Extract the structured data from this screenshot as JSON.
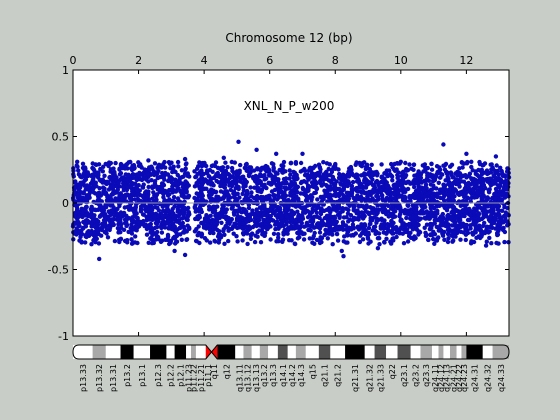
{
  "chart_data": {
    "type": "scatter",
    "title": "Chromosome 12 (bp)",
    "annotation": "XNL_N_P_w200",
    "x_tick_labels": [
      "0",
      "2",
      "4",
      "6",
      "8",
      "10",
      "12"
    ],
    "y_tick_labels": [
      "1",
      "0.5",
      "0",
      "-0.5",
      "-1"
    ],
    "x_ticks": [
      0,
      2,
      4,
      6,
      8,
      10,
      12
    ],
    "y_ticks": [
      1,
      0.5,
      0,
      -0.5,
      -1
    ],
    "xlim": [
      0,
      13.3
    ],
    "ylim": [
      -1,
      1
    ],
    "centromere_gap": [
      3.55,
      3.7
    ],
    "zero_line": true,
    "colors": {
      "figure_bg": "#c8cdc8",
      "plot_bg": "#ffffff",
      "points": "#0a0ab8",
      "zero_line": "#9a9aa8",
      "centromere": "#ff0000"
    },
    "series": [
      {
        "band": [
          -0.22,
          0.24
        ],
        "outliers": [
          {
            "x": 0.8,
            "y": -0.42
          },
          {
            "x": 1.3,
            "y": 0.3
          },
          {
            "x": 3.1,
            "y": -0.36
          },
          {
            "x": 3.42,
            "y": 0.33
          },
          {
            "x": 3.42,
            "y": -0.39
          },
          {
            "x": 3.95,
            "y": 0.3
          },
          {
            "x": 4.6,
            "y": 0.34
          },
          {
            "x": 5.05,
            "y": 0.46
          },
          {
            "x": 5.6,
            "y": 0.4
          },
          {
            "x": 6.2,
            "y": 0.37
          },
          {
            "x": 7.0,
            "y": 0.37
          },
          {
            "x": 8.2,
            "y": -0.36
          },
          {
            "x": 8.25,
            "y": -0.4
          },
          {
            "x": 10.0,
            "y": 0.31
          },
          {
            "x": 11.3,
            "y": 0.44
          },
          {
            "x": 12.0,
            "y": 0.37
          },
          {
            "x": 12.15,
            "y": 0.31
          },
          {
            "x": 12.9,
            "y": 0.35
          },
          {
            "x": 12.6,
            "y": -0.32
          },
          {
            "x": 2.3,
            "y": 0.32
          },
          {
            "x": 9.3,
            "y": -0.34
          }
        ]
      }
    ],
    "ideogram_bands": [
      {
        "name": "p13.33",
        "end": 0.6,
        "stain": "white"
      },
      {
        "name": "p13.32",
        "end": 1.0,
        "stain": "gray"
      },
      {
        "name": "p13.31",
        "end": 1.45,
        "stain": "white"
      },
      {
        "name": "p13.2",
        "end": 1.85,
        "stain": "black"
      },
      {
        "name": "p13.1",
        "end": 2.35,
        "stain": "white"
      },
      {
        "name": "p12.3",
        "end": 2.85,
        "stain": "black"
      },
      {
        "name": "p12.2",
        "end": 3.1,
        "stain": "white"
      },
      {
        "name": "p12.1",
        "end": 3.45,
        "stain": "black"
      },
      {
        "name": "p11.23",
        "end": 3.6,
        "stain": "white"
      },
      {
        "name": "p11.22",
        "end": 3.75,
        "stain": "gray"
      },
      {
        "name": "p11.21",
        "end": 4.05,
        "stain": "white"
      },
      {
        "name": "p11.1",
        "end": 4.2,
        "stain": "centromere"
      },
      {
        "name": "q11",
        "end": 4.4,
        "stain": "centromere"
      },
      {
        "name": "q12",
        "end": 4.95,
        "stain": "black"
      },
      {
        "name": "q13.11",
        "end": 5.2,
        "stain": "white"
      },
      {
        "name": "q13.12",
        "end": 5.45,
        "stain": "gray"
      },
      {
        "name": "q13.13",
        "end": 5.7,
        "stain": "white"
      },
      {
        "name": "q13.2",
        "end": 5.95,
        "stain": "gray"
      },
      {
        "name": "q13.3",
        "end": 6.25,
        "stain": "white"
      },
      {
        "name": "q14.1",
        "end": 6.55,
        "stain": "dark"
      },
      {
        "name": "q14.2",
        "end": 6.8,
        "stain": "white"
      },
      {
        "name": "q14.3",
        "end": 7.1,
        "stain": "gray"
      },
      {
        "name": "q15",
        "end": 7.5,
        "stain": "white"
      },
      {
        "name": "q21.1",
        "end": 7.85,
        "stain": "dark"
      },
      {
        "name": "q21.2",
        "end": 8.3,
        "stain": "white"
      },
      {
        "name": "q21.31",
        "end": 8.9,
        "stain": "black"
      },
      {
        "name": "q21.32",
        "end": 9.2,
        "stain": "white"
      },
      {
        "name": "q21.33",
        "end": 9.55,
        "stain": "dark"
      },
      {
        "name": "q22",
        "end": 9.9,
        "stain": "white"
      },
      {
        "name": "q23.1",
        "end": 10.3,
        "stain": "dark"
      },
      {
        "name": "q23.2",
        "end": 10.6,
        "stain": "white"
      },
      {
        "name": "q23.3",
        "end": 10.95,
        "stain": "gray"
      },
      {
        "name": "q24.11",
        "end": 11.15,
        "stain": "white"
      },
      {
        "name": "q24.12",
        "end": 11.3,
        "stain": "gray"
      },
      {
        "name": "q24.13",
        "end": 11.5,
        "stain": "white"
      },
      {
        "name": "q24.21",
        "end": 11.7,
        "stain": "gray"
      },
      {
        "name": "q24.22",
        "end": 11.85,
        "stain": "white"
      },
      {
        "name": "q24.23",
        "end": 12.0,
        "stain": "gray"
      },
      {
        "name": "q24.31",
        "end": 12.5,
        "stain": "black"
      },
      {
        "name": "q24.32",
        "end": 12.8,
        "stain": "white"
      },
      {
        "name": "q24.33",
        "end": 13.3,
        "stain": "gray"
      }
    ]
  }
}
